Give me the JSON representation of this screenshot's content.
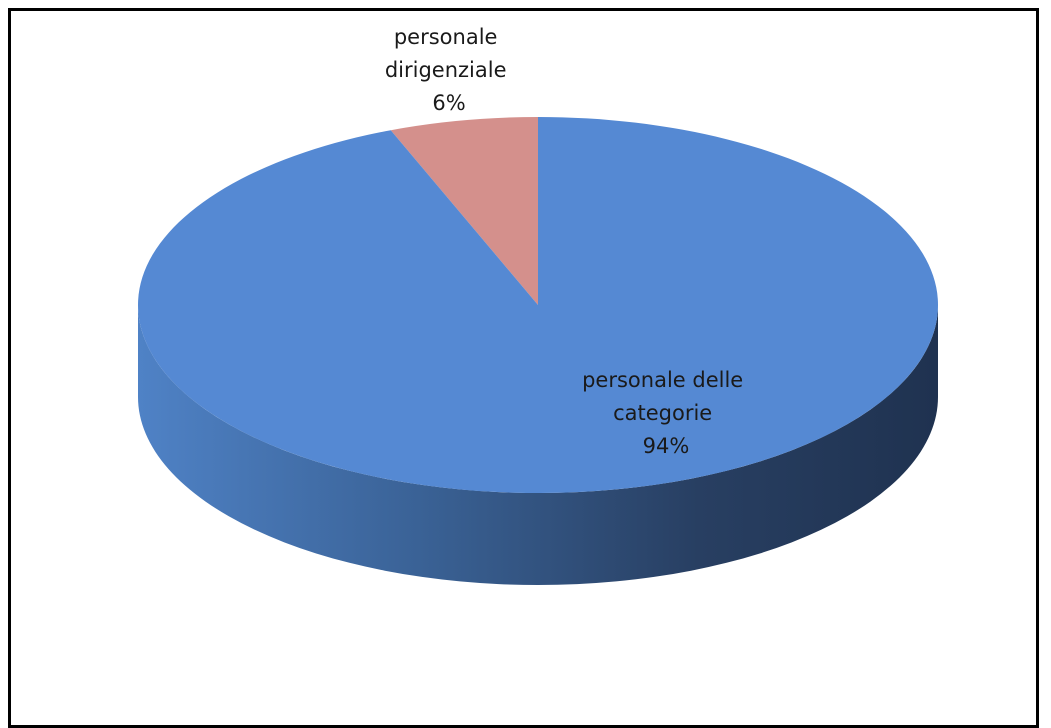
{
  "chart_data": {
    "type": "pie",
    "style": "3d",
    "title": "",
    "slices": [
      {
        "label": "personale dirigenziale",
        "value": 6,
        "value_label": "6%",
        "label_lines": [
          "personale",
          "dirigenziale",
          "6%"
        ]
      },
      {
        "label": "personale delle categorie",
        "value": 94,
        "value_label": "94%",
        "label_lines": [
          "personale delle",
          "categorie",
          "94%"
        ]
      }
    ]
  },
  "colors": {
    "personale_dirigenziale": "#d4908c",
    "personale_delle_categorie": "#5589d3",
    "side_light": "#4a7cc0",
    "side_dark": "#233755"
  }
}
